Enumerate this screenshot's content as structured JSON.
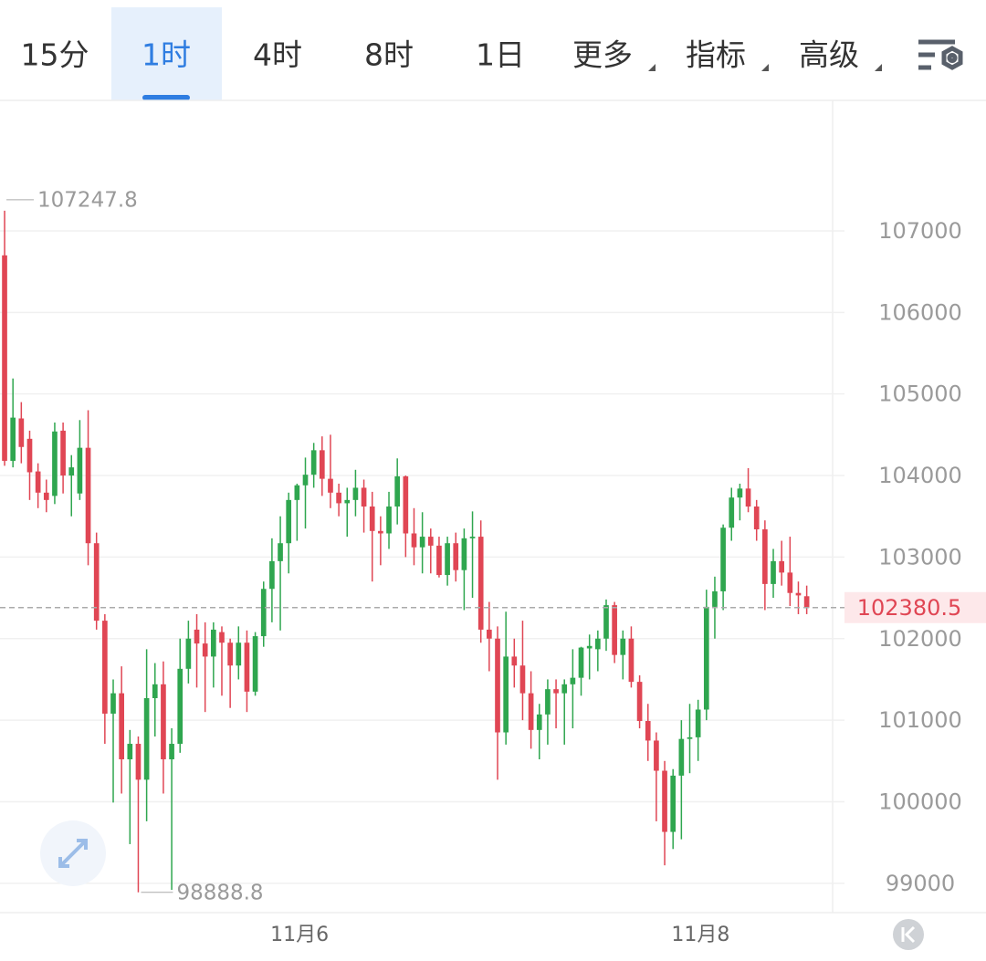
{
  "toolbar": {
    "tabs": [
      "15分",
      "1时",
      "4时",
      "8时",
      "1日",
      "更多",
      "指标",
      "高级"
    ],
    "selected": 1,
    "dropdowns": [
      5,
      6,
      7
    ]
  },
  "chart_data": {
    "type": "candlestick",
    "x": [
      0,
      1,
      2,
      3,
      4,
      5,
      6,
      7,
      8,
      9,
      10,
      11,
      12,
      13,
      14,
      15,
      16,
      17,
      18,
      19,
      20,
      21,
      22,
      23,
      24,
      25,
      26,
      27,
      28,
      29,
      30,
      31,
      32,
      33,
      34,
      35,
      36,
      37,
      38,
      39,
      40,
      41,
      42,
      43,
      44,
      45,
      46,
      47,
      48,
      49,
      50,
      51,
      52,
      53,
      54,
      55,
      56,
      57,
      58,
      59,
      60,
      61,
      62,
      63,
      64,
      65,
      66,
      67,
      68,
      69,
      70,
      71,
      72,
      73,
      74,
      75,
      76,
      77,
      78,
      79,
      80,
      81,
      82,
      83,
      84,
      85,
      86,
      87,
      88,
      89,
      90,
      91,
      92,
      93,
      94,
      95,
      96
    ],
    "open": [
      106700,
      104180,
      104700,
      104450,
      104050,
      103790,
      103750,
      104550,
      104000,
      103780,
      104340,
      103170,
      102220,
      101080,
      101330,
      100520,
      100710,
      100270,
      101270,
      101440,
      100520,
      100710,
      101630,
      102110,
      101940,
      101780,
      102080,
      101950,
      101670,
      101950,
      101350,
      102030,
      102610,
      102950,
      103170,
      103700,
      103880,
      104010,
      104310,
      103960,
      103790,
      103660,
      103700,
      103850,
      103620,
      103320,
      103290,
      103620,
      103990,
      103290,
      103120,
      103250,
      103140,
      102780,
      103170,
      102840,
      103230,
      103250,
      102110,
      102000,
      100850,
      101780,
      101670,
      101330,
      100880,
      101070,
      101380,
      101330,
      101440,
      101520,
      101880,
      101870,
      102000,
      102410,
      101800,
      102000,
      101470,
      100990,
      100750,
      100380,
      99630,
      100320,
      100770,
      100790,
      101130,
      102390,
      102580,
      103360,
      103730,
      103840,
      103620,
      103340,
      102670,
      102950,
      102810,
      102560,
      102520
    ],
    "high": [
      107247.8,
      105190,
      104900,
      104550,
      104150,
      103950,
      104650,
      104650,
      104250,
      104680,
      104800,
      103300,
      102300,
      101500,
      101660,
      100880,
      100800,
      101870,
      101700,
      101720,
      100900,
      102000,
      102220,
      102300,
      102200,
      102200,
      102150,
      102000,
      102150,
      102100,
      102080,
      102700,
      103230,
      103500,
      103790,
      103900,
      104220,
      104400,
      104480,
      104500,
      103900,
      103850,
      104070,
      103950,
      103800,
      103500,
      103800,
      104210,
      104000,
      103600,
      103550,
      103350,
      103250,
      103250,
      103300,
      103350,
      103560,
      103450,
      102450,
      102150,
      102330,
      102000,
      102220,
      101600,
      101200,
      101500,
      101500,
      101500,
      101870,
      101900,
      102050,
      102100,
      102480,
      102450,
      102100,
      102150,
      101550,
      101200,
      100850,
      100500,
      100400,
      101000,
      101200,
      101250,
      102600,
      102760,
      103400,
      103850,
      103900,
      104090,
      103700,
      103450,
      103100,
      103200,
      103250,
      102700,
      102650
    ],
    "low": [
      104120,
      104100,
      104150,
      103700,
      103600,
      103550,
      103650,
      103780,
      103500,
      103700,
      102900,
      102110,
      100710,
      99990,
      100100,
      99480,
      98888.8,
      99760,
      100800,
      100100,
      98920,
      100600,
      101450,
      101400,
      101100,
      101400,
      101300,
      101150,
      101500,
      101100,
      101300,
      101900,
      102200,
      102100,
      102800,
      103200,
      103350,
      103850,
      103750,
      103600,
      103500,
      103250,
      103500,
      103300,
      102700,
      102900,
      103100,
      103400,
      103000,
      102900,
      102800,
      102800,
      102750,
      102650,
      102700,
      102350,
      102500,
      101950,
      101600,
      100270,
      100700,
      101400,
      101000,
      100650,
      100520,
      100700,
      100900,
      100700,
      100900,
      101300,
      101500,
      101600,
      101850,
      101700,
      101500,
      101400,
      100900,
      100500,
      99760,
      99220,
      99420,
      99540,
      100350,
      100500,
      101000,
      102000,
      102350,
      103200,
      103450,
      103550,
      103200,
      102350,
      102500,
      102650,
      102400,
      102300,
      102300
    ],
    "close": [
      104180,
      104710,
      104350,
      104040,
      103790,
      103700,
      104540,
      104000,
      104100,
      104340,
      103170,
      102220,
      101080,
      101330,
      100520,
      100710,
      100270,
      101270,
      101440,
      100520,
      100710,
      101630,
      102000,
      101940,
      101780,
      102110,
      101950,
      101670,
      101950,
      101350,
      102030,
      102610,
      102950,
      103170,
      103700,
      103880,
      104010,
      104310,
      103960,
      103790,
      103660,
      103700,
      103850,
      103620,
      103320,
      103290,
      103620,
      103990,
      103290,
      103120,
      103250,
      103140,
      102780,
      103170,
      102840,
      103230,
      103250,
      102110,
      102000,
      100850,
      101780,
      101670,
      101330,
      100880,
      101070,
      101380,
      101330,
      101440,
      101520,
      101890,
      101910,
      102000,
      102410,
      101800,
      102000,
      101470,
      100990,
      100750,
      100380,
      99630,
      100320,
      100770,
      100790,
      101130,
      102390,
      102580,
      103360,
      103730,
      103840,
      103620,
      103340,
      102670,
      102950,
      102810,
      102560,
      102530,
      102380.5
    ],
    "up_color": "#2fa64f",
    "down_color": "#e04654",
    "xlim": [
      -0.55,
      99.1
    ],
    "xticks": [
      {
        "value": 35.3,
        "label": "11月6"
      },
      {
        "value": 83.3,
        "label": "11月8"
      }
    ],
    "ylim": [
      98640,
      108600
    ],
    "yticks": [
      99000,
      100000,
      101000,
      102000,
      103000,
      104000,
      105000,
      106000,
      107000
    ],
    "grid": true,
    "max_marker": 0,
    "min_marker": 16,
    "last_price_line": true
  }
}
